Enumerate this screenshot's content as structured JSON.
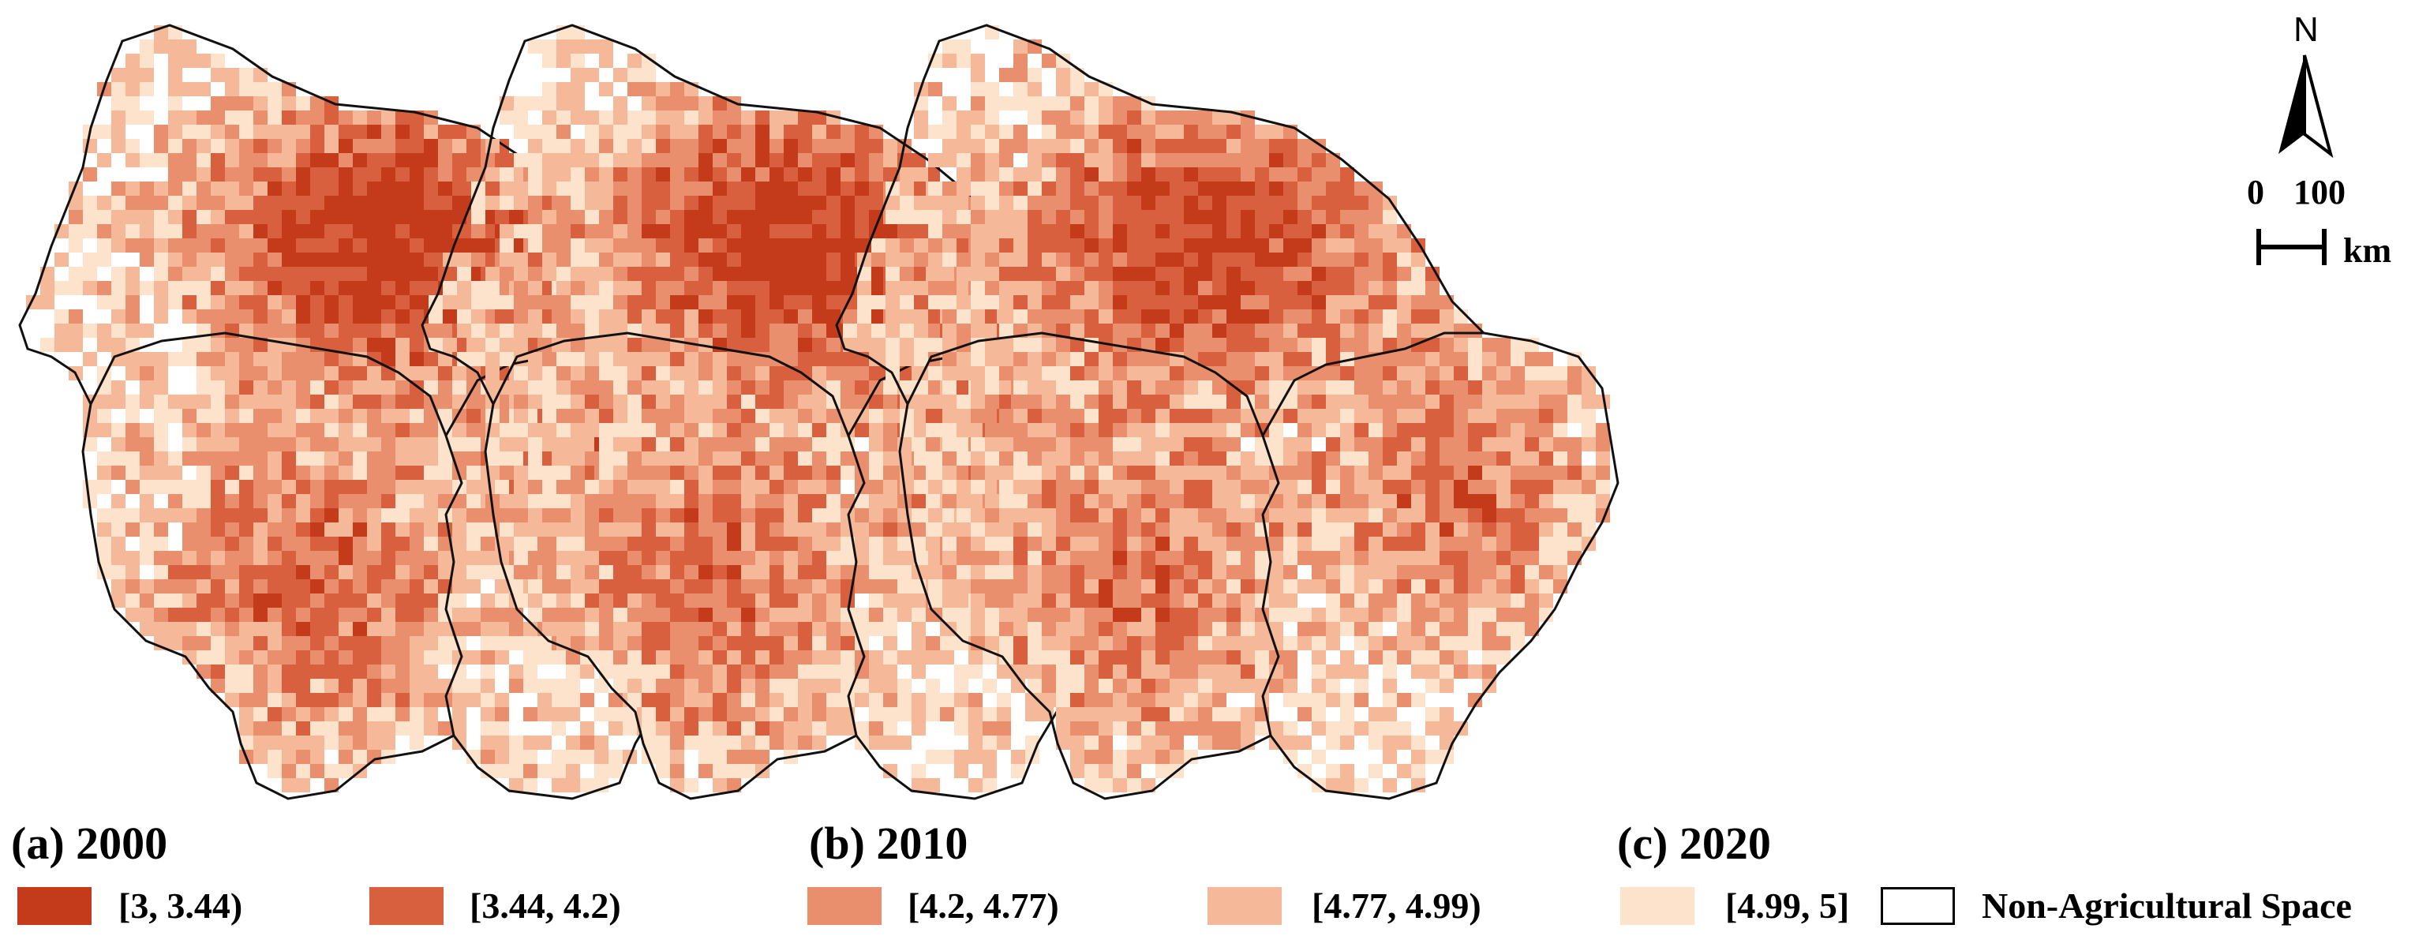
{
  "figure": {
    "panels": [
      {
        "label": "(a) 2000",
        "year": 2000
      },
      {
        "label": "(b) 2010",
        "year": 2010
      },
      {
        "label": "(c) 2020",
        "year": 2020
      }
    ],
    "legend": [
      {
        "label": "[3, 3.44)",
        "color": "#c43b1c"
      },
      {
        "label": "[3.44, 4.2)",
        "color": "#d9603f"
      },
      {
        "label": "[4.2, 4.77)",
        "color": "#ea8f6e"
      },
      {
        "label": "[4.77, 4.99)",
        "color": "#f5b899"
      },
      {
        "label": "[4.99, 5]",
        "color": "#fde3cc"
      },
      {
        "label": "Non-Agricultural Space",
        "color": "#ffffff"
      }
    ],
    "north_arrow": {
      "label": "N",
      "icon": "north-arrow-icon"
    },
    "scale_bar": {
      "tick_start": "0",
      "tick_end": "100",
      "unit": "km"
    },
    "boundary_color": "#111111"
  }
}
